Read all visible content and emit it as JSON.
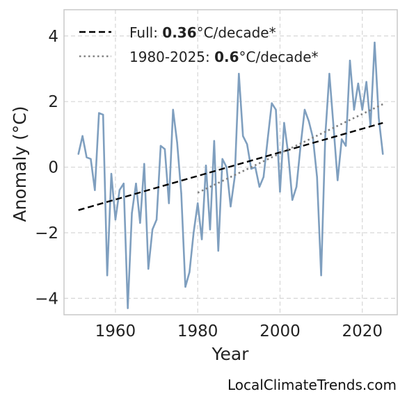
{
  "chart_data": {
    "type": "line",
    "title": "",
    "xlabel": "Year",
    "ylabel": "Anomaly (°C)",
    "xlim": [
      1947.5,
      2028.5
    ],
    "ylim": [
      -4.5,
      4.8
    ],
    "xticks": [
      1960,
      1980,
      2000,
      2020
    ],
    "yticks": [
      -4,
      -2,
      0,
      2,
      4
    ],
    "ytick_labels": [
      "−4",
      "−2",
      "0",
      "2",
      "4"
    ],
    "grid": true,
    "legend_position": "top-left",
    "colors": {
      "series": "#7f9fbf",
      "full_trend": "#000000",
      "recent_trend": "#808080"
    },
    "series": [
      {
        "x": [
          1951,
          1952,
          1953,
          1954,
          1955,
          1956,
          1957,
          1958,
          1959,
          1960,
          1961,
          1962,
          1963,
          1964,
          1965,
          1966,
          1967,
          1968,
          1969,
          1970,
          1971,
          1972,
          1973,
          1974,
          1975,
          1976,
          1977,
          1978,
          1979,
          1980,
          1981,
          1982,
          1983,
          1984,
          1985,
          1986,
          1987,
          1988,
          1989,
          1990,
          1991,
          1992,
          1993,
          1994,
          1995,
          1996,
          1997,
          1998,
          1999,
          2000,
          2001,
          2002,
          2003,
          2004,
          2005,
          2006,
          2007,
          2008,
          2009,
          2010,
          2011,
          2012,
          2013,
          2014,
          2015,
          2016,
          2017,
          2018,
          2019,
          2020,
          2021,
          2022,
          2023,
          2024,
          2025
        ],
        "values": [
          0.4,
          0.95,
          0.3,
          0.25,
          -0.7,
          1.65,
          1.6,
          -3.3,
          -0.2,
          -1.6,
          -0.7,
          -0.5,
          -4.3,
          -1.4,
          -0.5,
          -1.7,
          0.1,
          -3.1,
          -1.9,
          -1.6,
          0.65,
          0.55,
          -1.1,
          1.75,
          0.75,
          -0.8,
          -3.65,
          -3.2,
          -2.0,
          -1.1,
          -2.2,
          0.05,
          -1.9,
          0.8,
          -2.55,
          0.25,
          0.0,
          -1.2,
          -0.3,
          2.85,
          0.95,
          0.7,
          -0.05,
          0.0,
          -0.6,
          -0.3,
          0.85,
          1.95,
          1.75,
          -0.75,
          1.35,
          0.4,
          -1.0,
          -0.6,
          0.65,
          1.75,
          1.4,
          0.9,
          -0.3,
          -3.3,
          0.95,
          2.85,
          1.25,
          -0.4,
          0.85,
          0.65,
          3.25,
          1.75,
          2.55,
          1.75,
          2.6,
          1.25,
          3.8,
          1.5,
          0.4
        ]
      }
    ],
    "trend_full": {
      "x": [
        1951,
        2025
      ],
      "y": [
        -1.31,
        1.35
      ]
    },
    "trend_recent": {
      "x": [
        1980,
        2025
      ],
      "y": [
        -0.78,
        1.92
      ]
    },
    "legend": [
      {
        "prefix": "Full: ",
        "value": "0.36",
        "suffix": "°C/decade*",
        "style": "dashed"
      },
      {
        "prefix": "1980-2025: ",
        "value": "0.6",
        "suffix": "°C/decade*",
        "style": "dotted"
      }
    ],
    "watermark": "LocalClimateTrends.com"
  }
}
